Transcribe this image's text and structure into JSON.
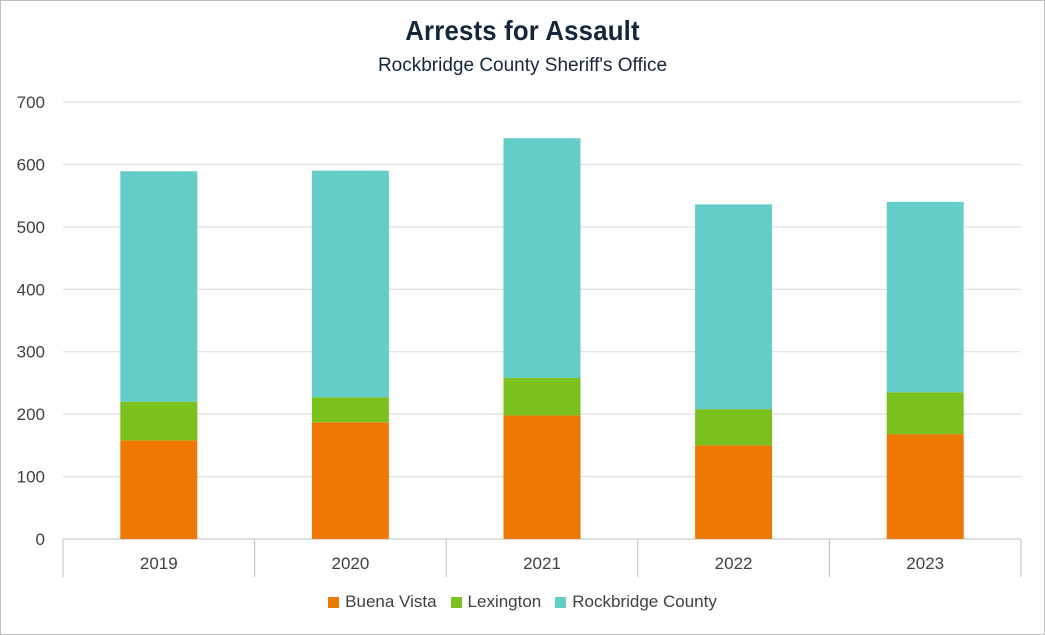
{
  "chart_data": {
    "type": "bar",
    "stacked": true,
    "title": "Arrests for Assault",
    "subtitle": "Rockbridge County Sheriff's Office",
    "xlabel": "",
    "ylabel": "",
    "categories": [
      "2019",
      "2020",
      "2021",
      "2022",
      "2023"
    ],
    "ylim": [
      0,
      700
    ],
    "yticks": [
      0,
      100,
      200,
      300,
      400,
      500,
      600,
      700
    ],
    "grid": true,
    "legend_position": "bottom",
    "series": [
      {
        "name": "Buena Vista",
        "color": "#ed7802",
        "values": [
          158,
          187,
          198,
          150,
          168
        ]
      },
      {
        "name": "Lexington",
        "color": "#7ac11e",
        "values": [
          62,
          40,
          60,
          58,
          67
        ]
      },
      {
        "name": "Rockbridge County",
        "color": "#65cdc7",
        "values": [
          369,
          363,
          384,
          328,
          305
        ]
      }
    ]
  }
}
